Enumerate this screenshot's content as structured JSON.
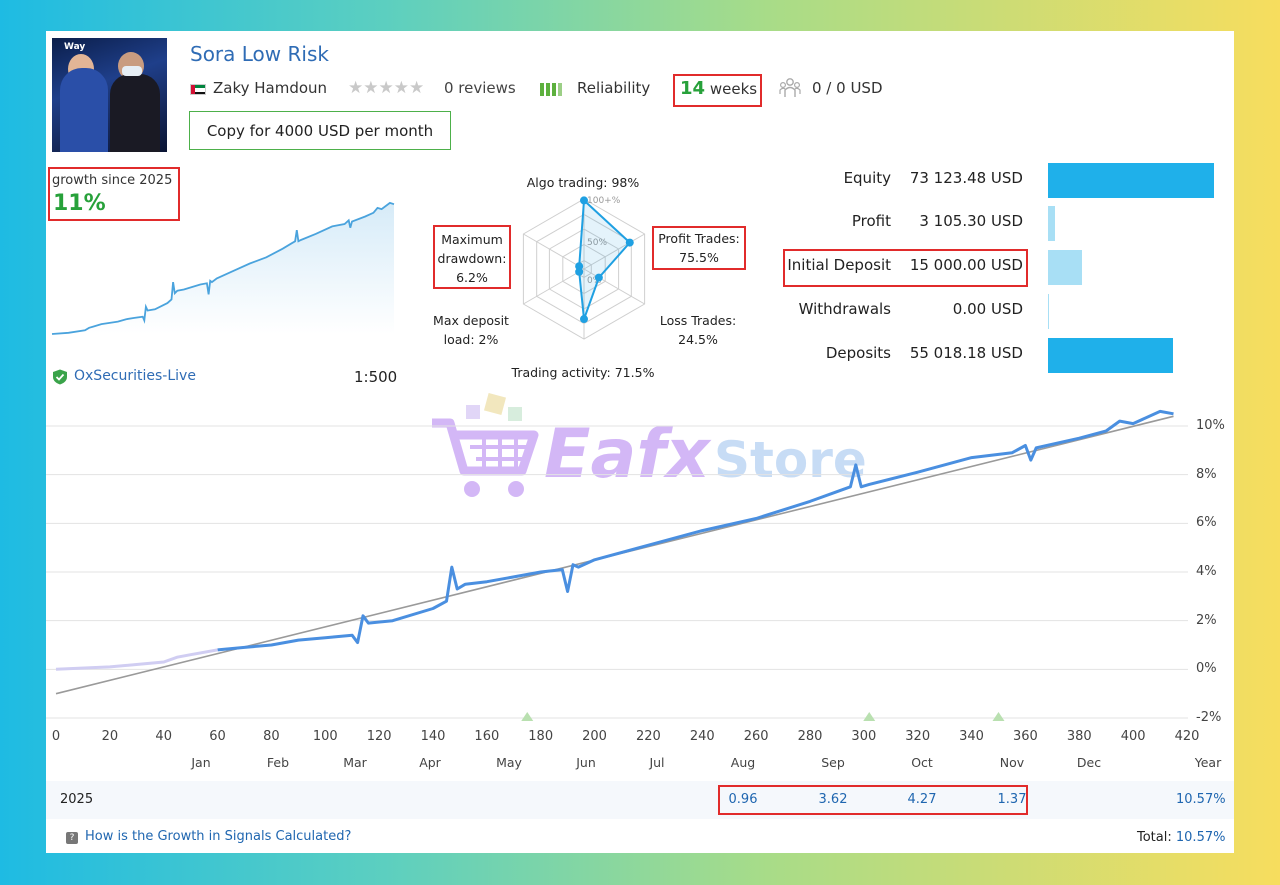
{
  "signal": {
    "title": "Sora Low Risk",
    "author": "Zaky Hamdoun",
    "reviews": "0 reviews",
    "reliability": "Reliability",
    "weeks_num": "14",
    "weeks_unit": "weeks",
    "subscribers": "0 / 0 USD",
    "copy_button": "Copy for 4000 USD per month",
    "photo_text": "Way"
  },
  "growth": {
    "label": "growth since 2025",
    "value": "11%",
    "server": "OxSecurities-Live",
    "leverage": "1:500"
  },
  "radar": {
    "algo": "Algo trading: 98%",
    "profit": [
      "Profit Trades:",
      "75.5%"
    ],
    "loss": [
      "Loss Trades:",
      "24.5%"
    ],
    "activity": "Trading activity: 71.5%",
    "deposit_load": [
      "Max deposit",
      "load: 2%"
    ],
    "drawdown": [
      "Maximum",
      "drawdown:",
      "6.2%"
    ],
    "scale_100": "100+%",
    "scale_50": "50%",
    "scale_0": "0%",
    "values": {
      "algo": 98,
      "profit": 75.5,
      "loss": 24.5,
      "activity": 71.5,
      "deposit_load": 2,
      "drawdown": 6.2
    }
  },
  "stats": [
    {
      "label": "Equity",
      "value": "73 123.48 USD",
      "bar": 1.0,
      "color": "#1fb0ea"
    },
    {
      "label": "Profit",
      "value": "3 105.30 USD",
      "bar": 0.042,
      "color": "#a8dff5"
    },
    {
      "label": "Initial Deposit",
      "value": "15 000.00 USD",
      "bar": 0.205,
      "color": "#a8dff5"
    },
    {
      "label": "Withdrawals",
      "value": "0.00 USD",
      "bar": 0.0,
      "color": "#a8dff5"
    },
    {
      "label": "Deposits",
      "value": "55 018.18 USD",
      "bar": 0.752,
      "color": "#1fb0ea"
    }
  ],
  "chart_data": {
    "type": "line",
    "x_ticks": [
      "0",
      "20",
      "40",
      "60",
      "80",
      "100",
      "120",
      "140",
      "160",
      "180",
      "200",
      "220",
      "240",
      "260",
      "280",
      "300",
      "320",
      "340",
      "360",
      "380",
      "400",
      "420"
    ],
    "y_ticks": [
      "10%",
      "8%",
      "6%",
      "4%",
      "2%",
      "0%",
      "-2%"
    ],
    "months": [
      "Jan",
      "Feb",
      "Mar",
      "Apr",
      "May",
      "Jun",
      "Jul",
      "Aug",
      "Sep",
      "Oct",
      "Nov",
      "Dec"
    ],
    "year_label": "Year",
    "xlim": [
      0,
      420
    ],
    "ylim": [
      -2,
      10
    ],
    "series": [
      {
        "x": [
          0,
          20,
          40,
          45,
          50,
          60,
          70,
          80,
          90,
          100,
          110,
          112,
          114,
          116,
          125,
          140,
          145,
          147,
          149,
          152,
          160,
          170,
          180,
          188,
          190,
          192,
          194,
          200,
          220,
          240,
          260,
          280,
          290,
          295,
          297,
          299,
          302,
          320,
          340,
          355,
          360,
          362,
          364,
          380,
          390,
          395,
          400,
          410,
          415
        ],
        "y": [
          0.0,
          0.1,
          0.3,
          0.5,
          0.6,
          0.8,
          0.9,
          1.0,
          1.2,
          1.3,
          1.4,
          1.1,
          2.2,
          1.9,
          2.0,
          2.5,
          2.8,
          4.2,
          3.3,
          3.5,
          3.6,
          3.8,
          4.0,
          4.1,
          3.2,
          4.3,
          4.2,
          4.5,
          5.1,
          5.7,
          6.2,
          6.9,
          7.3,
          7.5,
          8.4,
          7.5,
          7.6,
          8.1,
          8.7,
          8.9,
          9.2,
          8.6,
          9.1,
          9.5,
          9.8,
          10.2,
          10.1,
          10.6,
          10.5
        ]
      },
      {
        "x": [
          0,
          415
        ],
        "y": [
          -1.0,
          10.4
        ]
      }
    ],
    "markers_x": [
      175,
      302,
      350
    ]
  },
  "year_row": {
    "year": "2025",
    "values": [
      {
        "month": "Aug",
        "value": "0.96"
      },
      {
        "month": "Sep",
        "value": "3.62"
      },
      {
        "month": "Oct",
        "value": "4.27"
      },
      {
        "month": "Nov",
        "value": "1.37"
      }
    ],
    "year_total": "10.57%"
  },
  "footer": {
    "link": "How is the Growth in Signals Calculated?",
    "total_label": "Total:",
    "total_value": "10.57%"
  },
  "watermark": {
    "part1": "Eafx",
    "part2": "Store"
  }
}
